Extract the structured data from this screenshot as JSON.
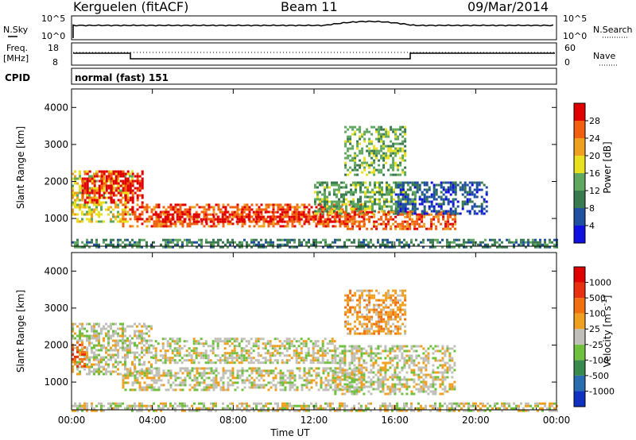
{
  "header": {
    "station": "Kerguelen (fitACF)",
    "beam": "Beam 11",
    "date": "09/Mar/2014"
  },
  "noise_panel": {
    "left_label": "N.Sky",
    "left_ticks": [
      "10^5",
      "10^0"
    ],
    "right_label": "N.Search",
    "right_ticks": [
      "10^5",
      "10^0"
    ]
  },
  "freq_panel": {
    "left_label_line1": "Freq.",
    "left_label_line2": "[MHz]",
    "left_ticks": [
      "18",
      "8"
    ],
    "right_label": "Nave",
    "right_ticks": [
      "60",
      "0"
    ]
  },
  "cpid": {
    "label": "CPID",
    "value": "normal (fast) 151"
  },
  "chart_data": [
    {
      "type": "heatmap",
      "name": "power",
      "ylabel": "Slant Range [km]",
      "ylim": [
        250,
        4500
      ],
      "yticks": [
        "1000",
        "2000",
        "3000",
        "4000"
      ],
      "xlim": [
        "00:00",
        "24:00"
      ],
      "colorbar": {
        "label": "Power [dB]",
        "ticks": [
          "4",
          "8",
          "12",
          "16",
          "20",
          "24",
          "28"
        ],
        "colors": [
          "#1010e0",
          "#2050a0",
          "#3a7a50",
          "#60a860",
          "#e8e020",
          "#f0a020",
          "#f06010",
          "#e00000"
        ]
      },
      "echo_regions": [
        {
          "x0": 0.0,
          "x1": 3.0,
          "y0": 900,
          "y1": 2300,
          "level": 4
        },
        {
          "x0": 0.5,
          "x1": 3.5,
          "y0": 1400,
          "y1": 2300,
          "level": 7
        },
        {
          "x0": 2.5,
          "x1": 14.5,
          "y0": 800,
          "y1": 1400,
          "level": 6
        },
        {
          "x0": 4.0,
          "x1": 13.5,
          "y0": 900,
          "y1": 1200,
          "level": 7
        },
        {
          "x0": 12.0,
          "x1": 17.0,
          "y0": 1100,
          "y1": 2000,
          "level": 3
        },
        {
          "x0": 13.5,
          "x1": 19.0,
          "y0": 700,
          "y1": 1200,
          "level": 6
        },
        {
          "x0": 16.0,
          "x1": 20.5,
          "y0": 1100,
          "y1": 2000,
          "level": 1
        },
        {
          "x0": 13.5,
          "x1": 16.5,
          "y0": 2200,
          "y1": 3500,
          "level": 3
        },
        {
          "x0": 0.0,
          "x1": 24.0,
          "y0": 250,
          "y1": 450,
          "level": 2
        }
      ]
    },
    {
      "type": "heatmap",
      "name": "velocity",
      "ylabel": "Slant Range [km]",
      "ylim": [
        250,
        4500
      ],
      "yticks": [
        "1000",
        "2000",
        "3000",
        "4000"
      ],
      "xlabel": "Time UT",
      "xlim": [
        "00:00",
        "24:00"
      ],
      "xticks": [
        "00:00",
        "04:00",
        "08:00",
        "12:00",
        "16:00",
        "20:00",
        "00:00"
      ],
      "colorbar": {
        "label": "Velocity [m s^-1]",
        "ticks": [
          "1000",
          "500",
          "100",
          "25",
          "-25",
          "-100",
          "-500",
          "-1000"
        ],
        "colors": [
          "#1030c0",
          "#2a6cb0",
          "#3a8a50",
          "#70c040",
          "#c0c0b8",
          "#f0a020",
          "#f07010",
          "#e83010",
          "#e00000"
        ]
      },
      "echo_regions": [
        {
          "x0": 0.0,
          "x1": 4.0,
          "y0": 1200,
          "y1": 2600,
          "level": 4
        },
        {
          "x0": 2.5,
          "x1": 14.5,
          "y0": 800,
          "y1": 1400,
          "level": 4
        },
        {
          "x0": 4.0,
          "x1": 13.0,
          "y0": 1500,
          "y1": 2200,
          "level": 4
        },
        {
          "x0": 13.0,
          "x1": 19.0,
          "y0": 700,
          "y1": 2000,
          "level": 4
        },
        {
          "x0": 0.0,
          "x1": 0.6,
          "y0": 1400,
          "y1": 2100,
          "level": 6
        },
        {
          "x0": 13.5,
          "x1": 16.5,
          "y0": 2300,
          "y1": 3500,
          "level": 5
        },
        {
          "x0": 0.0,
          "x1": 24.0,
          "y0": 250,
          "y1": 450,
          "level": 4
        }
      ]
    }
  ]
}
